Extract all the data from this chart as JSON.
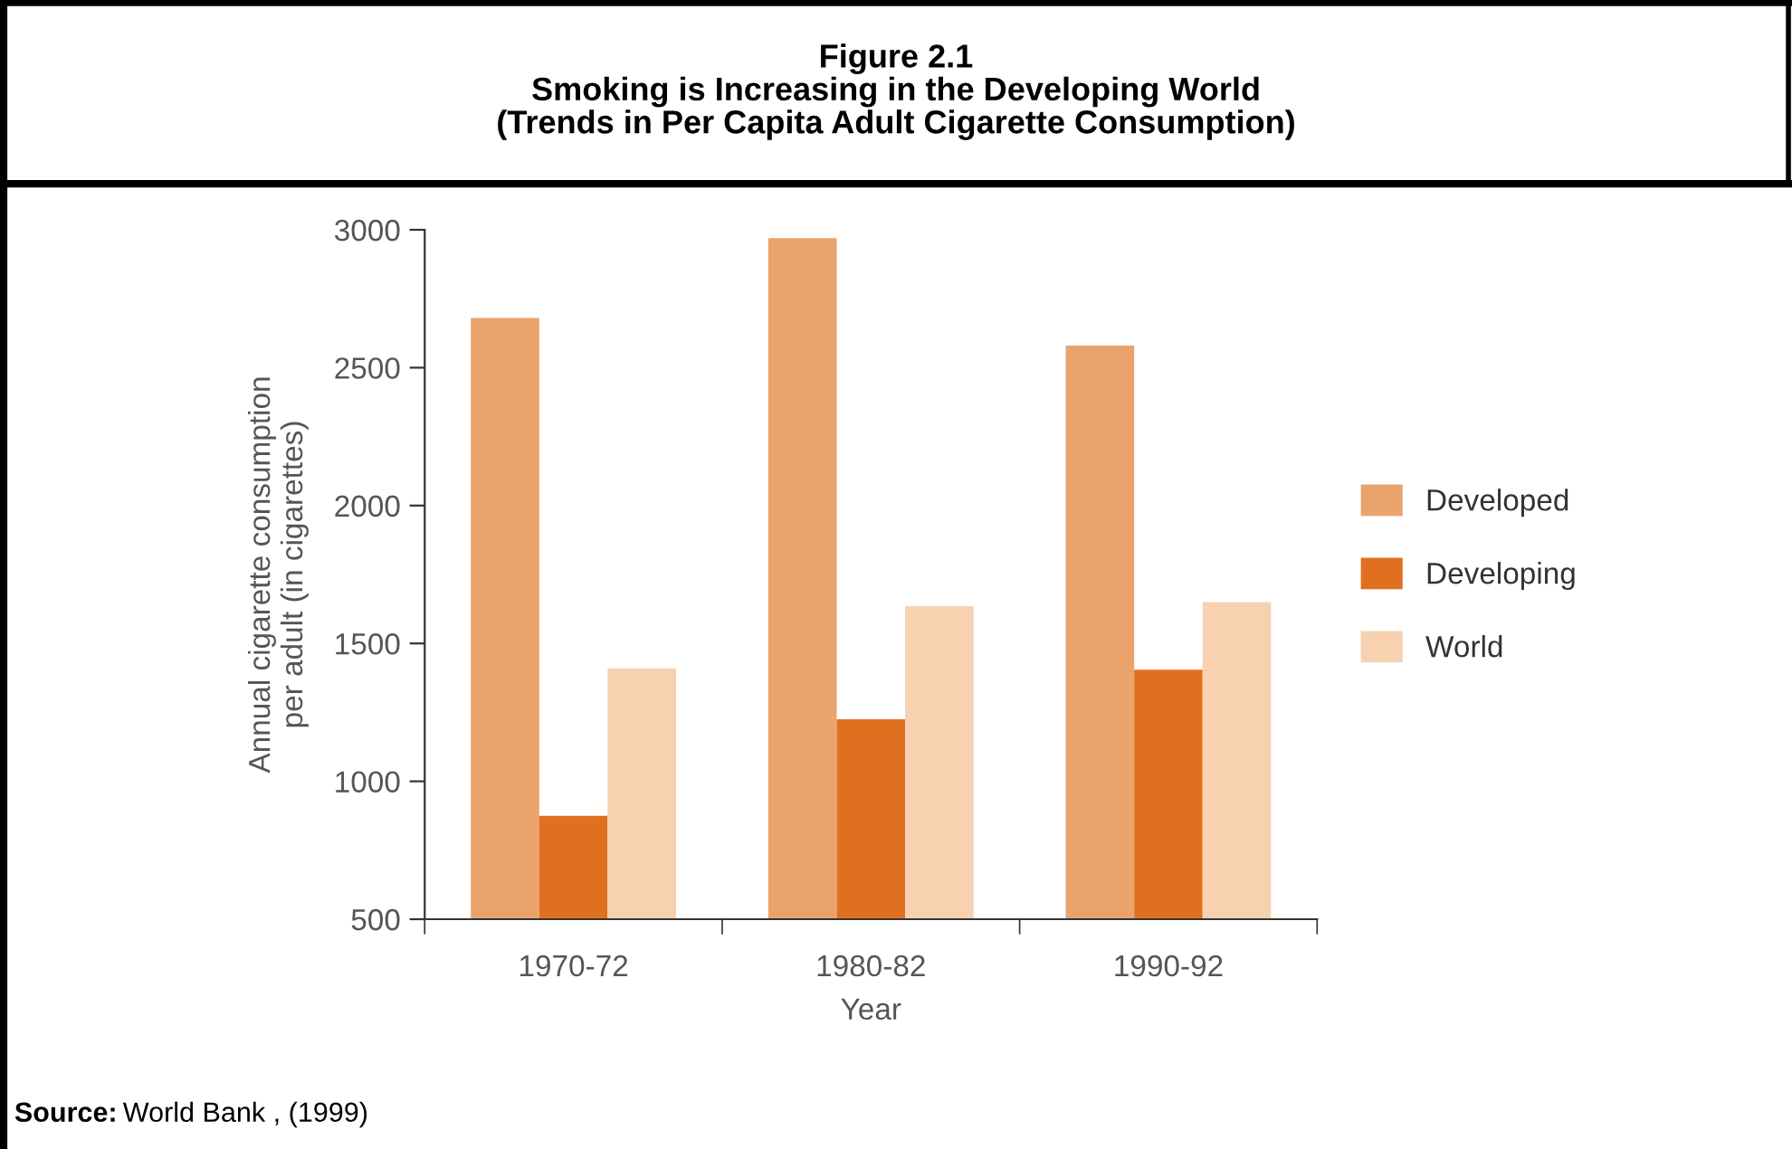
{
  "chart_data": {
    "type": "bar",
    "title": "Figure 2.1\nSmoking is Increasing in the Developing World\n(Trends in Per Capita Adult Cigarette Consumption)",
    "xlabel": "Year",
    "ylabel": "Annual cigarette consumption\nper adult (in cigarettes)",
    "categories": [
      "1970-72",
      "1980-82",
      "1990-92"
    ],
    "series": [
      {
        "name": "Developed",
        "color": "#eba36c",
        "values": [
          2680,
          2970,
          2580
        ]
      },
      {
        "name": "Developing",
        "color": "#e07020",
        "values": [
          875,
          1225,
          1405
        ]
      },
      {
        "name": "World",
        "color": "#f8d1b0",
        "values": [
          1410,
          1635,
          1650
        ]
      }
    ],
    "ylim": [
      500,
      3000
    ],
    "yticks": [
      500,
      1000,
      1500,
      2000,
      2500,
      3000
    ],
    "grid": false,
    "legend": "right",
    "annotations": [
      "Source: World Bank , (1999)"
    ]
  }
}
